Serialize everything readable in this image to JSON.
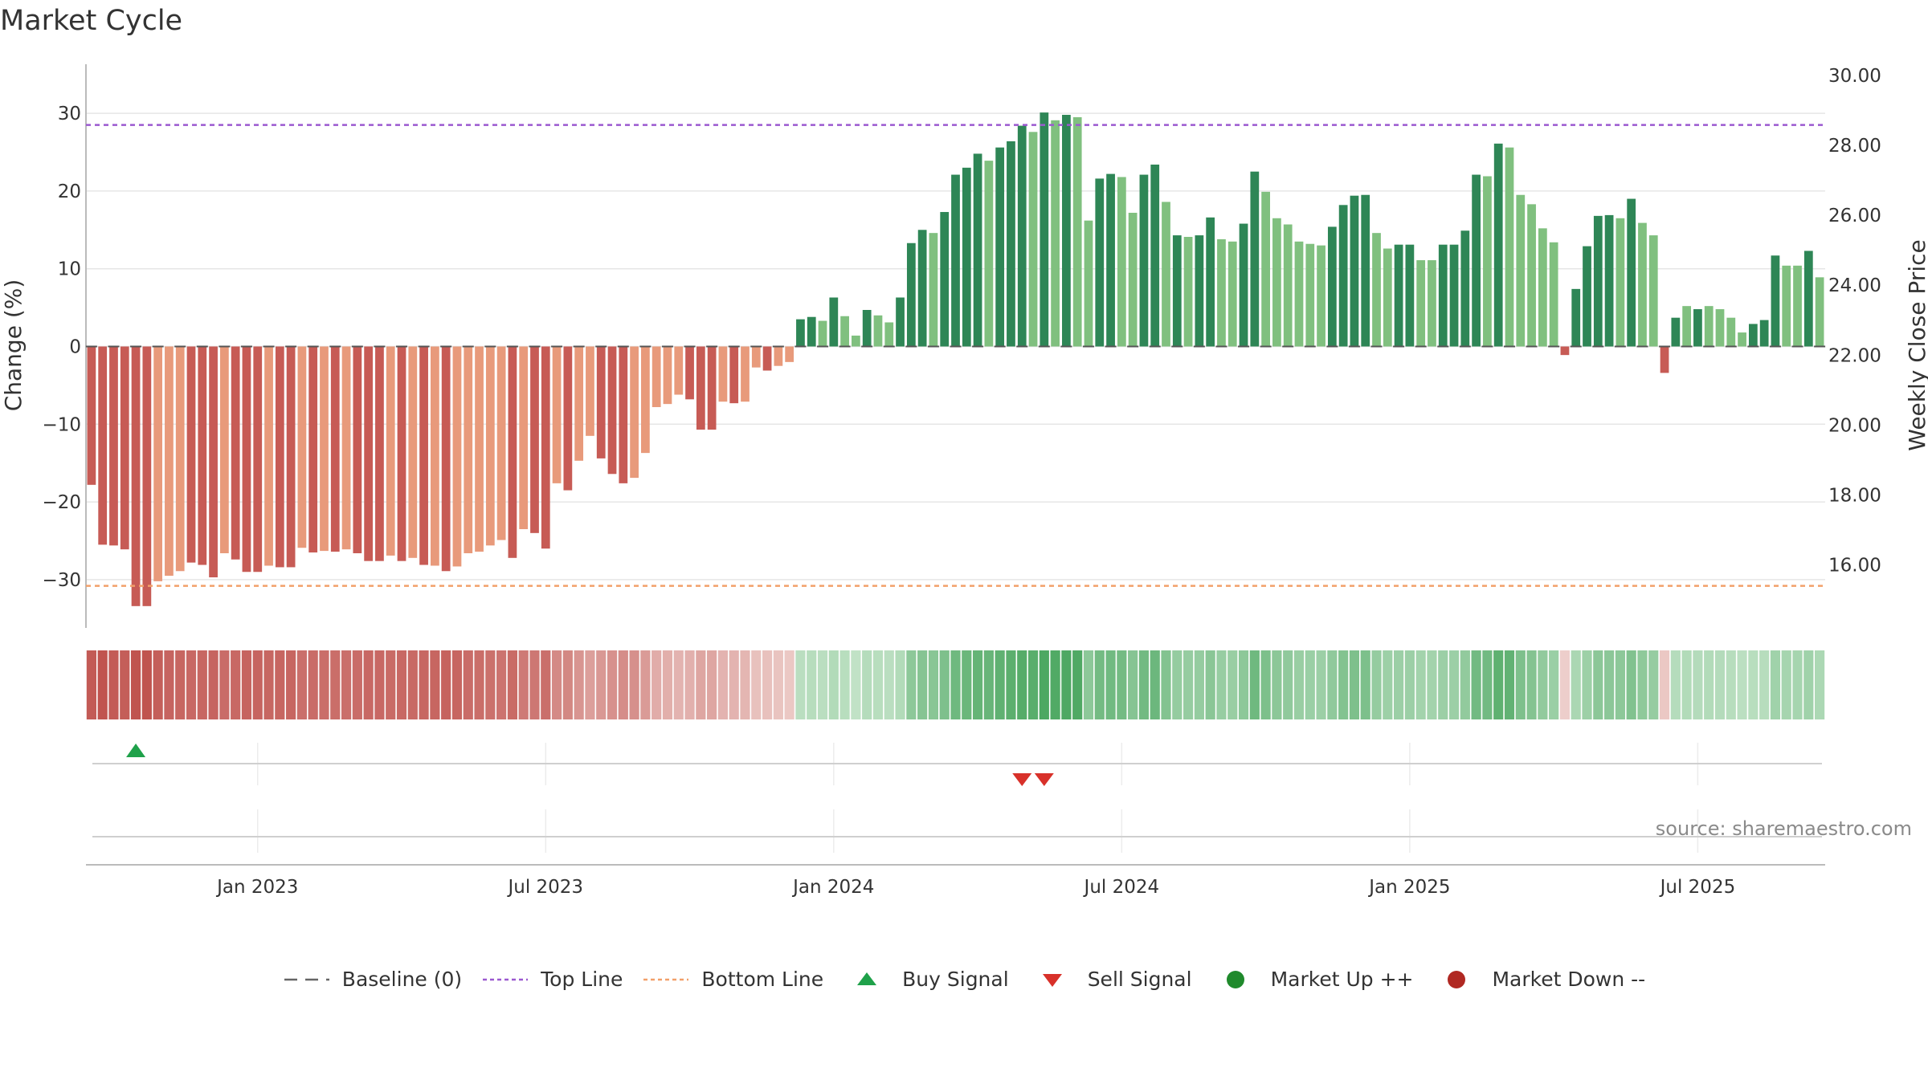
{
  "title": "Market Cycle",
  "source_note": "source: sharemaestro.com",
  "colors": {
    "dark_red": "#c75b55",
    "light_red": "#e89a7b",
    "dark_green": "#2e8656",
    "light_green": "#80c07f",
    "top_line": "#9b59d0",
    "bottom_line": "#f2a06a",
    "buy": "#1fa14a",
    "sell": "#d8312a",
    "market_up": "#1f8a2c",
    "market_down": "#b02822"
  },
  "legend": [
    {
      "label": "Baseline (0)",
      "symbol": "dash",
      "color": "#666666"
    },
    {
      "label": "Top Line",
      "symbol": "dot",
      "color": "#9b59d0"
    },
    {
      "label": "Bottom Line",
      "symbol": "dot",
      "color": "#f2a06a"
    },
    {
      "label": "Buy Signal",
      "symbol": "tri-up",
      "color": "#1fa14a"
    },
    {
      "label": "Sell Signal",
      "symbol": "tri-down",
      "color": "#d8312a"
    },
    {
      "label": "Market Up ++",
      "symbol": "circle",
      "color": "#1f8a2c"
    },
    {
      "label": "Market Down --",
      "symbol": "circle",
      "color": "#b02822"
    }
  ],
  "chart_data": {
    "type": "bar",
    "ylabel": "Change (%)",
    "y2label": "Weekly Close Price",
    "ylim": [
      -36,
      36
    ],
    "y2lim": [
      14.5,
      30.5
    ],
    "yticks": [
      -30,
      -20,
      -10,
      0,
      10,
      20,
      30
    ],
    "y2ticks": [
      "16.00",
      "18.00",
      "20.00",
      "22.00",
      "24.00",
      "26.00",
      "28.00",
      "30.00"
    ],
    "xticks": [
      {
        "label": "Jan 2023",
        "index": 15
      },
      {
        "label": "Jul 2023",
        "index": 41
      },
      {
        "label": "Jan 2024",
        "index": 67
      },
      {
        "label": "Jul 2024",
        "index": 93
      },
      {
        "label": "Jan 2025",
        "index": 119
      },
      {
        "label": "Jul 2025",
        "index": 145
      }
    ],
    "top_line": 28.5,
    "bottom_line": -30.8,
    "baseline": 0,
    "series": [
      {
        "values": [
          -17.8,
          -25.5,
          -25.6,
          -26.1,
          -33.4,
          -33.4,
          -30.2,
          -29.5,
          -28.9,
          -27.8,
          -28.1,
          -29.7,
          -26.6,
          -27.4,
          -29.0,
          -29.0,
          -28.2,
          -28.4,
          -28.4,
          -25.9,
          -26.5,
          -26.3,
          -26.4,
          -26.1,
          -26.6,
          -27.6,
          -27.6,
          -26.9,
          -27.6,
          -27.2,
          -28.1,
          -28.2,
          -28.9,
          -28.3,
          -26.6,
          -26.4,
          -25.6,
          -24.9,
          -27.2,
          -23.5,
          -24.0,
          -26.0,
          -17.6,
          -18.5,
          -14.7,
          -11.5,
          -14.4,
          -16.4,
          -17.6,
          -16.9,
          -13.7,
          -7.8,
          -7.4,
          -6.2,
          -6.8,
          -10.7,
          -10.7,
          -7.1,
          -7.3,
          -7.1,
          -2.7,
          -3.1,
          -2.5,
          -2.0,
          3.5,
          3.8,
          3.3,
          6.3,
          3.9,
          1.4,
          4.7,
          4.0,
          3.1,
          6.3,
          13.3,
          15.0,
          14.6,
          17.3,
          22.1,
          23.0,
          24.8,
          23.9,
          25.6,
          26.4,
          28.4,
          27.6,
          30.1,
          29.1,
          29.8,
          29.5,
          16.2,
          21.6,
          22.2,
          21.8,
          17.2,
          22.1,
          23.4,
          18.6,
          14.3,
          14.1,
          14.3,
          16.6,
          13.8,
          13.5,
          15.8,
          22.5,
          19.9,
          16.5,
          15.7,
          13.5,
          13.2,
          13.0,
          15.4,
          18.2,
          19.4,
          19.5,
          14.6,
          12.6,
          13.1,
          13.1,
          11.1,
          11.1,
          13.1,
          13.1,
          14.9,
          22.1,
          21.9,
          26.1,
          25.6,
          19.5,
          18.3,
          15.2,
          13.4,
          -1.1,
          7.4,
          12.9,
          16.8,
          16.9,
          16.5,
          19.0,
          15.9,
          14.3,
          -3.4,
          3.7,
          5.2,
          4.8,
          5.2,
          4.8,
          3.7,
          1.8,
          2.9,
          3.4,
          11.7,
          10.4,
          10.4,
          12.3,
          8.9
        ],
        "shade": [
          1,
          1,
          1,
          1,
          1,
          1,
          0,
          0,
          0,
          1,
          1,
          1,
          0,
          1,
          1,
          1,
          0,
          1,
          1,
          0,
          1,
          0,
          1,
          0,
          1,
          1,
          1,
          0,
          1,
          0,
          1,
          0,
          1,
          0,
          0,
          0,
          0,
          0,
          1,
          0,
          1,
          1,
          0,
          1,
          0,
          0,
          1,
          1,
          1,
          0,
          0,
          0,
          0,
          0,
          1,
          1,
          1,
          0,
          1,
          0,
          0,
          1,
          0,
          0,
          1,
          1,
          0,
          1,
          0,
          0,
          1,
          0,
          0,
          1,
          1,
          1,
          0,
          1,
          1,
          1,
          1,
          0,
          1,
          1,
          1,
          0,
          1,
          0,
          1,
          0,
          0,
          1,
          1,
          0,
          0,
          1,
          1,
          0,
          1,
          0,
          1,
          1,
          0,
          0,
          1,
          1,
          0,
          0,
          0,
          0,
          0,
          0,
          1,
          1,
          1,
          1,
          0,
          0,
          1,
          1,
          0,
          0,
          1,
          1,
          1,
          1,
          0,
          1,
          0,
          0,
          0,
          0,
          0,
          1,
          1,
          1,
          1,
          1,
          0,
          1,
          0,
          0,
          1,
          1,
          0,
          1,
          0,
          0,
          0,
          0,
          1,
          1,
          1,
          0,
          0,
          1,
          0
        ]
      }
    ],
    "heat_strip": [
      -0.95,
      -1.0,
      -0.95,
      -0.93,
      -1.0,
      -1.0,
      -0.92,
      -0.88,
      -0.87,
      -0.85,
      -0.86,
      -0.88,
      -0.82,
      -0.85,
      -0.88,
      -0.88,
      -0.86,
      -0.87,
      -0.87,
      -0.8,
      -0.82,
      -0.81,
      -0.81,
      -0.8,
      -0.82,
      -0.85,
      -0.85,
      -0.83,
      -0.85,
      -0.84,
      -0.86,
      -0.87,
      -0.89,
      -0.87,
      -0.82,
      -0.81,
      -0.79,
      -0.77,
      -0.83,
      -0.72,
      -0.74,
      -0.8,
      -0.6,
      -0.62,
      -0.52,
      -0.45,
      -0.5,
      -0.55,
      -0.58,
      -0.56,
      -0.48,
      -0.35,
      -0.33,
      -0.3,
      -0.32,
      -0.4,
      -0.4,
      -0.3,
      -0.3,
      -0.28,
      -0.2,
      -0.2,
      -0.18,
      -0.15,
      0.25,
      0.27,
      0.25,
      0.3,
      0.26,
      0.2,
      0.28,
      0.26,
      0.25,
      0.3,
      0.55,
      0.6,
      0.58,
      0.65,
      0.75,
      0.78,
      0.82,
      0.8,
      0.85,
      0.88,
      0.92,
      0.9,
      0.98,
      0.95,
      0.97,
      0.96,
      0.55,
      0.72,
      0.74,
      0.72,
      0.6,
      0.73,
      0.77,
      0.62,
      0.5,
      0.49,
      0.5,
      0.57,
      0.48,
      0.47,
      0.55,
      0.75,
      0.66,
      0.56,
      0.53,
      0.47,
      0.46,
      0.45,
      0.53,
      0.62,
      0.65,
      0.66,
      0.5,
      0.44,
      0.45,
      0.45,
      0.4,
      0.4,
      0.45,
      0.45,
      0.52,
      0.73,
      0.73,
      0.86,
      0.84,
      0.65,
      0.61,
      0.52,
      0.46,
      -0.1,
      0.35,
      0.44,
      0.56,
      0.56,
      0.55,
      0.63,
      0.54,
      0.49,
      -0.15,
      0.28,
      0.3,
      0.29,
      0.3,
      0.29,
      0.27,
      0.24,
      0.26,
      0.27,
      0.42,
      0.38,
      0.38,
      0.42,
      0.34
    ],
    "buy_signals": [
      4
    ],
    "sell_signals": [
      84,
      86
    ]
  }
}
